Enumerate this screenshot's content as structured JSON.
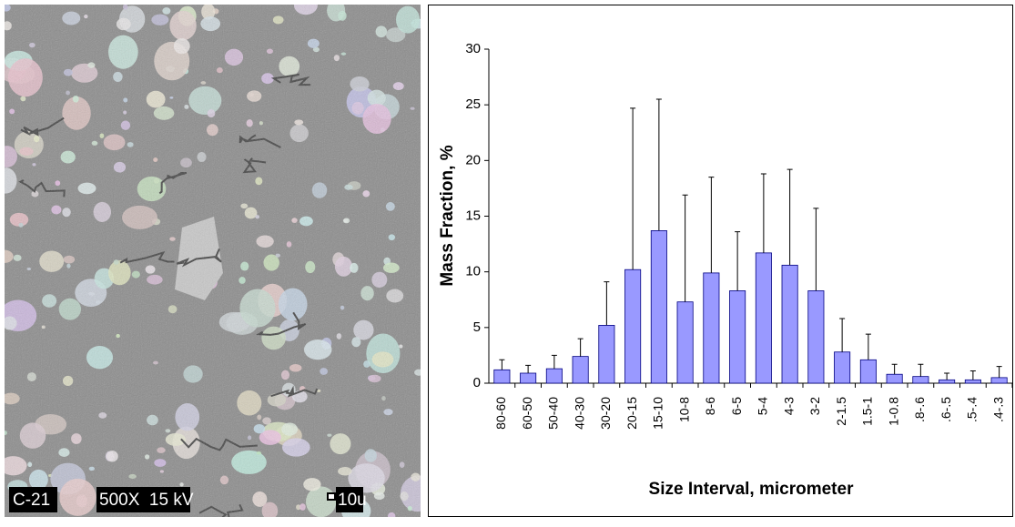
{
  "image": {
    "labels": [
      "C-21",
      "500X  15 kV",
      "10u"
    ]
  },
  "chart_data": {
    "type": "bar",
    "y_label": "Mass Fraction, %",
    "x_label": "Size Interval, micrometer",
    "categories": [
      "80-60",
      "60-50",
      "50-40",
      "40-30",
      "30-20",
      "20-15",
      "15-10",
      "10-8",
      "8-6",
      "6-5",
      "5-4",
      "4-3",
      "3-2",
      "2-1.5",
      "1.5-1",
      "1-0.8",
      ".8-.6",
      ".6-.5",
      ".5-.4",
      ".4-.3"
    ],
    "values": [
      1.2,
      0.9,
      1.3,
      2.4,
      5.2,
      10.2,
      13.7,
      7.3,
      9.9,
      8.3,
      11.7,
      10.6,
      8.3,
      2.8,
      2.1,
      0.8,
      0.6,
      0.3,
      0.3,
      0.5
    ],
    "errors": [
      0.9,
      0.7,
      1.2,
      1.6,
      3.9,
      14.5,
      11.8,
      9.6,
      8.6,
      5.3,
      7.1,
      8.6,
      7.4,
      3.0,
      2.3,
      0.9,
      1.1,
      0.6,
      0.8,
      1.0
    ],
    "color": "#9999ff",
    "ylim": [
      0,
      30
    ],
    "yticks": [
      0,
      5,
      10,
      15,
      20,
      25,
      30
    ]
  }
}
